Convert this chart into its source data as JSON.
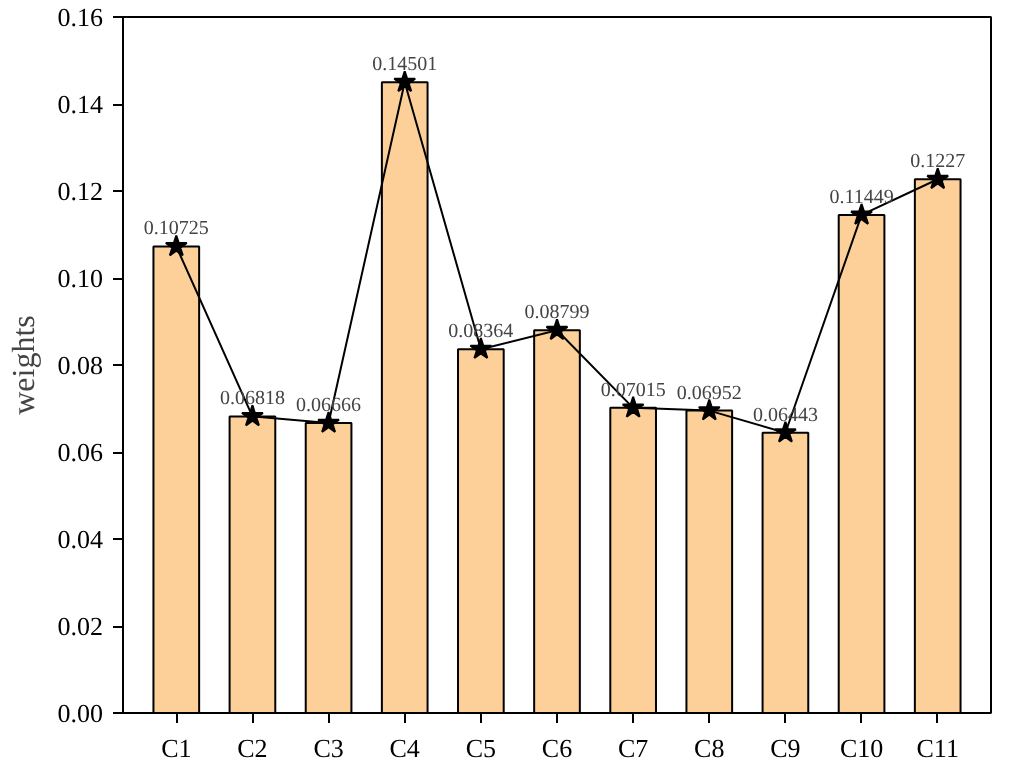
{
  "chart_data": {
    "type": "bar",
    "ylabel": "weights",
    "categories": [
      "C1",
      "C2",
      "C3",
      "C4",
      "C5",
      "C6",
      "C7",
      "C8",
      "C9",
      "C10",
      "C11"
    ],
    "series": [
      {
        "color": "#fdd09a",
        "values": [
          0.10725,
          0.06818,
          0.06666,
          0.14501,
          0.08364,
          0.08799,
          0.07015,
          0.06952,
          0.06443,
          0.11449,
          0.1227
        ]
      },
      {
        "type": "line",
        "color": "#000000",
        "marker": "star",
        "values": [
          0.10725,
          0.06818,
          0.06666,
          0.14501,
          0.08364,
          0.08799,
          0.07015,
          0.06952,
          0.06443,
          0.11449,
          0.1227
        ],
        "value_labels": [
          "0.10725",
          "0.06818",
          "0.06666",
          "0.14501",
          "0.08364",
          "0.08799",
          "0.07015",
          "0.06952",
          "0.06443",
          "0.11449",
          "0.1227"
        ]
      }
    ],
    "ylim": [
      0,
      0.16
    ],
    "yticks": [
      {
        "value": 0,
        "label": "0.00"
      },
      {
        "value": 0.02,
        "label": "0.02"
      },
      {
        "value": 0.04,
        "label": "0.04"
      },
      {
        "value": 0.06,
        "label": "0.06"
      },
      {
        "value": 0.08,
        "label": "0.08"
      },
      {
        "value": 0.1,
        "label": "0.10"
      },
      {
        "value": 0.12,
        "label": "0.12"
      },
      {
        "value": 0.14,
        "label": "0.14"
      },
      {
        "value": 0.16,
        "label": "0.16"
      }
    ],
    "grid": false
  }
}
